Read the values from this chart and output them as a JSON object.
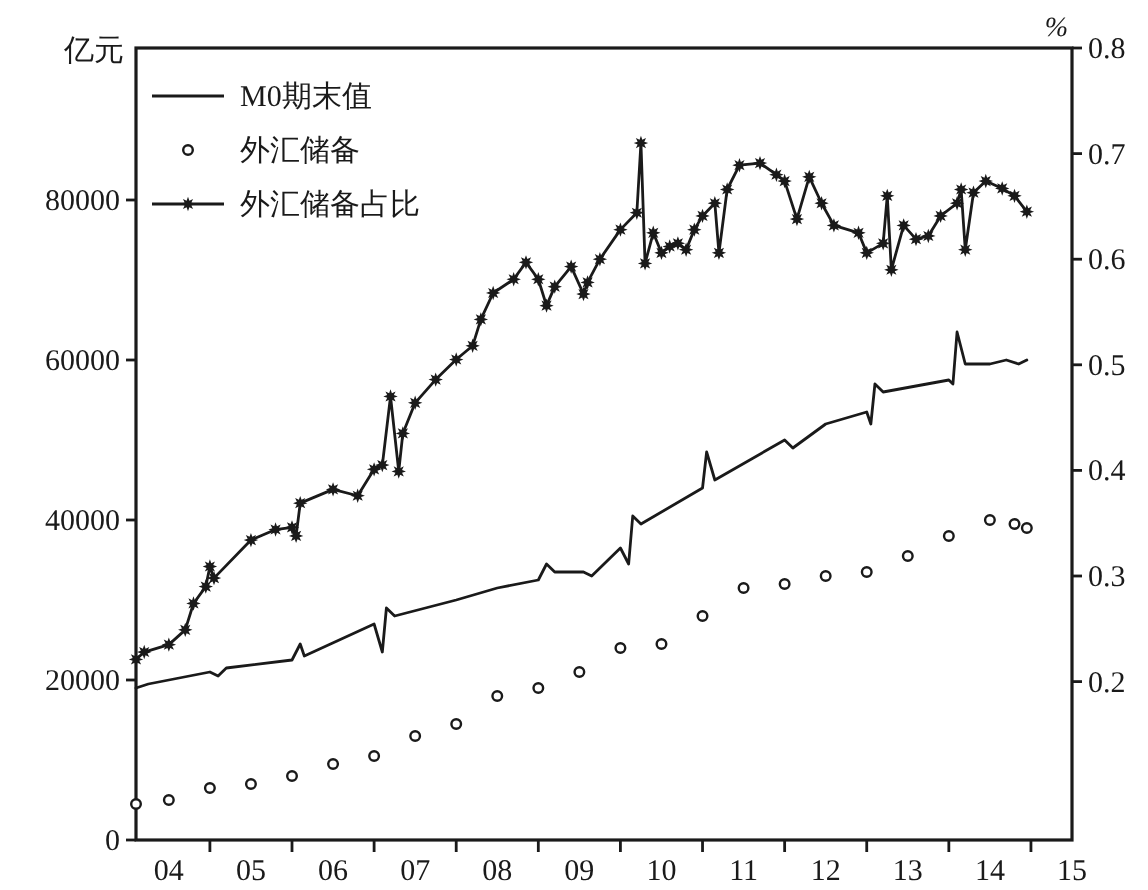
{
  "chart_data": {
    "type": "line",
    "ylabel": "亿元",
    "y2label": "%",
    "xlim": [
      2003.6,
      2015
    ],
    "xticks": [
      {
        "value": 2004,
        "label": "04"
      },
      {
        "value": 2004.5,
        "label": null
      },
      {
        "value": 2005,
        "label": "05"
      },
      {
        "value": 2005.5,
        "label": null
      },
      {
        "value": 2006,
        "label": "06"
      },
      {
        "value": 2006.5,
        "label": null
      },
      {
        "value": 2007,
        "label": "07"
      },
      {
        "value": 2007.5,
        "label": null
      },
      {
        "value": 2008,
        "label": "08"
      },
      {
        "value": 2008.5,
        "label": null
      },
      {
        "value": 2009,
        "label": "09"
      },
      {
        "value": 2009.5,
        "label": null
      },
      {
        "value": 2010,
        "label": "10"
      },
      {
        "value": 2010.5,
        "label": null
      },
      {
        "value": 2011,
        "label": "11"
      },
      {
        "value": 2011.5,
        "label": null
      },
      {
        "value": 2012,
        "label": "12"
      },
      {
        "value": 2012.5,
        "label": null
      },
      {
        "value": 2013,
        "label": "13"
      },
      {
        "value": 2013.5,
        "label": null
      },
      {
        "value": 2014,
        "label": "14"
      },
      {
        "value": 2014.5,
        "label": null
      },
      {
        "value": 2015,
        "label": "15"
      }
    ],
    "ylim": [
      0,
      99000
    ],
    "yticks": [
      0,
      20000,
      40000,
      60000,
      80000
    ],
    "y2lim": [
      0.05,
      0.8
    ],
    "y2ticks": [
      0.2,
      0.3,
      0.4,
      0.5,
      0.6,
      0.7,
      0.8
    ],
    "grid": false,
    "legend": "top left",
    "series": [
      {
        "name": "M0期末值",
        "marker": "none",
        "line_style": "solid",
        "color": "#1a1a1a",
        "x": [
          2003.6,
          2003.75,
          2004.5,
          2004.6,
          2004.7,
          2005.5,
          2005.6,
          2005.65,
          2006.5,
          2006.6,
          2006.65,
          2006.75,
          2007.5,
          2008.0,
          2008.5,
          2008.6,
          2008.7,
          2009.05,
          2009.15,
          2009.5,
          2009.6,
          2009.65,
          2009.75,
          2010.5,
          2010.55,
          2010.65,
          2011.5,
          2011.6,
          2012.0,
          2012.5,
          2012.55,
          2012.6,
          2012.7,
          2013.5,
          2013.55,
          2013.6,
          2013.7,
          2014.0,
          2014.2,
          2014.35,
          2014.45
        ],
        "values": [
          19000,
          19500,
          21000,
          20500,
          21500,
          22500,
          24500,
          23000,
          27000,
          23500,
          29000,
          28000,
          30000,
          31500,
          32500,
          34500,
          33500,
          33500,
          33000,
          36500,
          34500,
          40500,
          39500,
          44000,
          48500,
          45000,
          50000,
          49000,
          52000,
          53500,
          52000,
          57000,
          56000,
          57500,
          57000,
          63500,
          59500,
          59500,
          60000,
          59500,
          60000
        ]
      },
      {
        "name": "外汇储备",
        "type": "scatter",
        "marker": "circle",
        "color": "#1a1a1a",
        "x": [
          2003.6,
          2004.0,
          2004.5,
          2005.0,
          2005.5,
          2006.0,
          2006.5,
          2007.0,
          2007.5,
          2008.0,
          2008.5,
          2009.0,
          2009.5,
          2010.0,
          2010.5,
          2011.0,
          2011.5,
          2012.0,
          2012.5,
          2013.0,
          2013.5,
          2014.0,
          2014.3,
          2014.45
        ],
        "values": [
          4500,
          5000,
          6500,
          7000,
          8000,
          9500,
          10500,
          13000,
          14500,
          18000,
          19000,
          21000,
          24000,
          24500,
          28000,
          31500,
          32000,
          33000,
          33500,
          35500,
          38000,
          40000,
          39500,
          39000
        ]
      },
      {
        "name": "外汇储备占比",
        "type": "line",
        "marker": "star",
        "line_style": "solid",
        "axis": "y2",
        "color": "#1a1a1a",
        "x": [
          2003.6,
          2003.7,
          2004.0,
          2004.2,
          2004.3,
          2004.45,
          2004.5,
          2004.55,
          2005.0,
          2005.3,
          2005.5,
          2005.55,
          2005.6,
          2006.0,
          2006.3,
          2006.5,
          2006.6,
          2006.7,
          2006.8,
          2006.85,
          2007.0,
          2007.25,
          2007.5,
          2007.7,
          2007.8,
          2007.95,
          2008.2,
          2008.35,
          2008.5,
          2008.6,
          2008.7,
          2008.9,
          2009.05,
          2009.1,
          2009.25,
          2009.5,
          2009.7,
          2009.75,
          2009.8,
          2009.9,
          2010.0,
          2010.1,
          2010.2,
          2010.3,
          2010.4,
          2010.5,
          2010.65,
          2010.7,
          2010.8,
          2010.95,
          2011.2,
          2011.4,
          2011.5,
          2011.65,
          2011.8,
          2011.95,
          2012.1,
          2012.4,
          2012.5,
          2012.7,
          2012.75,
          2012.8,
          2012.95,
          2013.1,
          2013.25,
          2013.4,
          2013.6,
          2013.65,
          2013.7,
          2013.8,
          2013.95,
          2014.15,
          2014.3,
          2014.45
        ],
        "values": [
          0.221,
          0.228,
          0.235,
          0.249,
          0.274,
          0.29,
          0.309,
          0.298,
          0.334,
          0.344,
          0.346,
          0.338,
          0.369,
          0.382,
          0.376,
          0.401,
          0.405,
          0.47,
          0.399,
          0.435,
          0.464,
          0.486,
          0.505,
          0.518,
          0.543,
          0.568,
          0.581,
          0.597,
          0.581,
          0.556,
          0.574,
          0.593,
          0.567,
          0.578,
          0.6,
          0.628,
          0.644,
          0.71,
          0.596,
          0.625,
          0.606,
          0.612,
          0.615,
          0.609,
          0.628,
          0.641,
          0.653,
          0.606,
          0.666,
          0.689,
          0.691,
          0.68,
          0.674,
          0.638,
          0.678,
          0.653,
          0.632,
          0.625,
          0.606,
          0.615,
          0.66,
          0.59,
          0.632,
          0.619,
          0.622,
          0.641,
          0.653,
          0.666,
          0.609,
          0.663,
          0.674,
          0.667,
          0.66,
          0.645
        ]
      }
    ]
  }
}
